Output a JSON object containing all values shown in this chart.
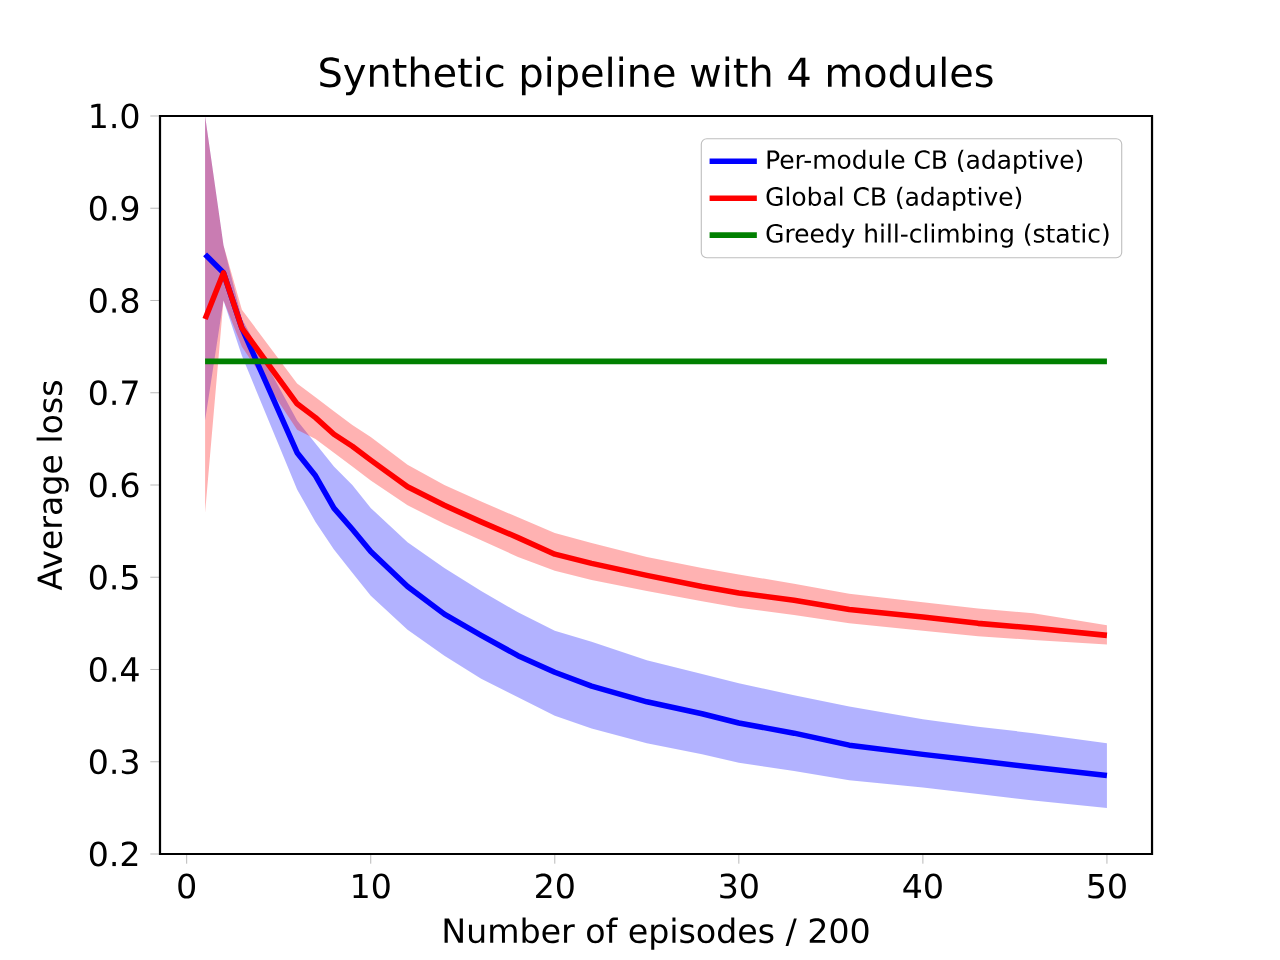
{
  "chart_data": {
    "type": "line",
    "title": "Synthetic pipeline with 4 modules",
    "xlabel": "Number of episodes / 200",
    "ylabel": "Average loss",
    "xlim": [
      -1.45,
      52.45
    ],
    "ylim": [
      0.2,
      1.0
    ],
    "xticks": [
      0,
      10,
      20,
      30,
      40,
      50
    ],
    "yticks": [
      {
        "value": 0.2,
        "label": "0.2"
      },
      {
        "value": 0.3,
        "label": "0.3"
      },
      {
        "value": 0.4,
        "label": "0.4"
      },
      {
        "value": 0.5,
        "label": "0.5"
      },
      {
        "value": 0.6,
        "label": "0.6"
      },
      {
        "value": 0.7,
        "label": "0.7"
      },
      {
        "value": 0.8,
        "label": "0.8"
      },
      {
        "value": 0.9,
        "label": "0.9"
      },
      {
        "value": 1.0,
        "label": "1.0"
      }
    ],
    "legend": "top right",
    "x": [
      1,
      2,
      3,
      6,
      7,
      8,
      9,
      10,
      12,
      14,
      16,
      18,
      20,
      22,
      25,
      28,
      30,
      33,
      36,
      40,
      43,
      46,
      50
    ],
    "series": [
      {
        "name": "Per-module CB (adaptive)",
        "color": "#0000ff",
        "values": [
          0.85,
          0.83,
          0.77,
          0.635,
          0.61,
          0.575,
          0.552,
          0.528,
          0.49,
          0.46,
          0.437,
          0.415,
          0.397,
          0.382,
          0.365,
          0.352,
          0.342,
          0.331,
          0.318,
          0.308,
          0.301,
          0.294,
          0.285
        ],
        "upper": [
          1.0,
          0.86,
          0.78,
          0.67,
          0.645,
          0.62,
          0.6,
          0.575,
          0.538,
          0.51,
          0.485,
          0.462,
          0.442,
          0.43,
          0.41,
          0.395,
          0.385,
          0.372,
          0.36,
          0.346,
          0.338,
          0.331,
          0.32
        ],
        "lower": [
          0.67,
          0.8,
          0.74,
          0.595,
          0.56,
          0.53,
          0.505,
          0.48,
          0.443,
          0.415,
          0.39,
          0.37,
          0.35,
          0.336,
          0.32,
          0.308,
          0.299,
          0.29,
          0.28,
          0.272,
          0.265,
          0.258,
          0.25
        ]
      },
      {
        "name": "Global CB (adaptive)",
        "color": "#ff0000",
        "values": [
          0.78,
          0.83,
          0.77,
          0.688,
          0.673,
          0.655,
          0.642,
          0.627,
          0.598,
          0.578,
          0.56,
          0.543,
          0.525,
          0.515,
          0.502,
          0.49,
          0.483,
          0.475,
          0.465,
          0.457,
          0.45,
          0.445,
          0.437
        ],
        "upper": [
          1.0,
          0.86,
          0.79,
          0.71,
          0.695,
          0.68,
          0.665,
          0.652,
          0.622,
          0.6,
          0.582,
          0.565,
          0.548,
          0.537,
          0.522,
          0.51,
          0.503,
          0.493,
          0.482,
          0.473,
          0.466,
          0.461,
          0.448
        ],
        "lower": [
          0.57,
          0.8,
          0.75,
          0.66,
          0.65,
          0.635,
          0.62,
          0.605,
          0.578,
          0.558,
          0.54,
          0.522,
          0.507,
          0.497,
          0.485,
          0.474,
          0.467,
          0.459,
          0.45,
          0.442,
          0.436,
          0.432,
          0.427
        ]
      },
      {
        "name": "Greedy hill-climbing (static)",
        "color": "#008000",
        "x": [
          1,
          50
        ],
        "values": [
          0.734,
          0.734
        ]
      }
    ]
  }
}
